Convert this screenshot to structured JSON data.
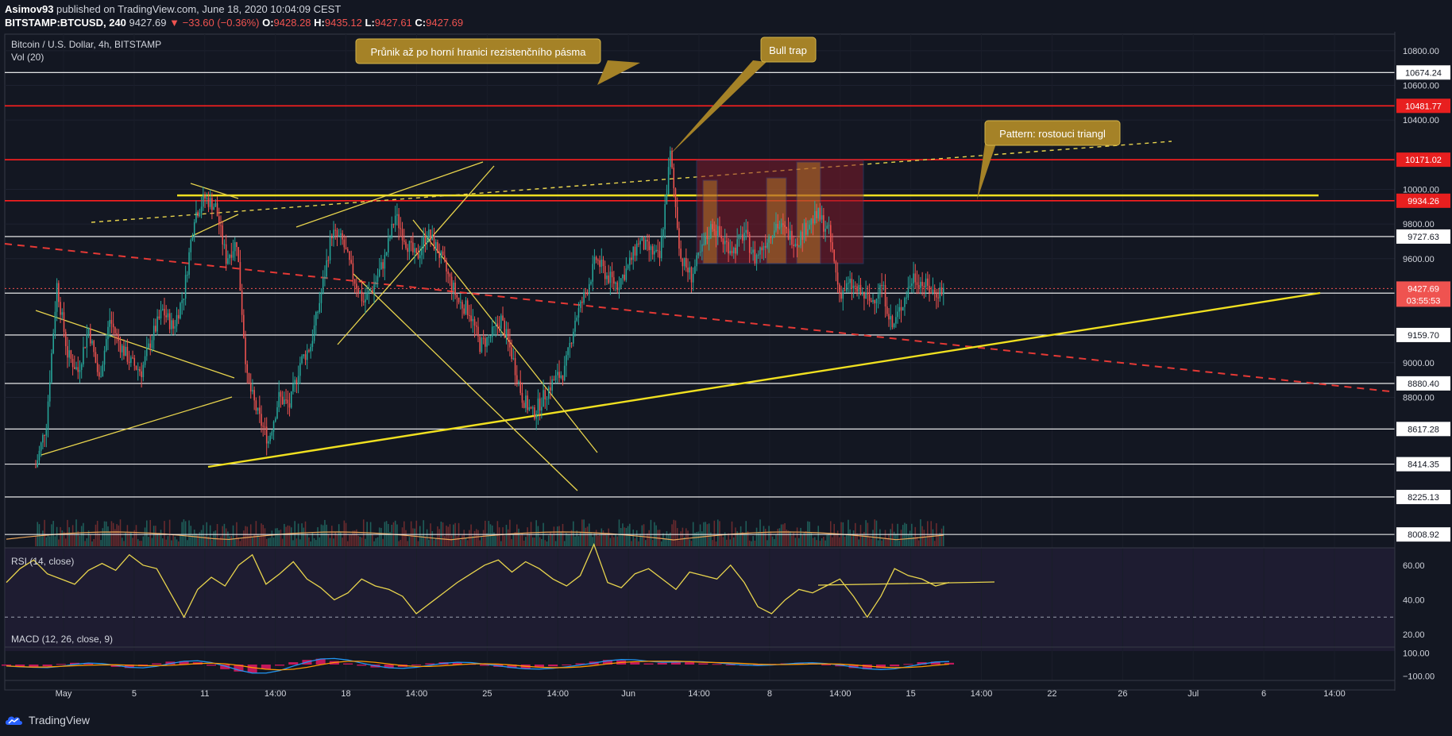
{
  "header": {
    "author": "Asimov93",
    "published": "published on TradingView.com, June 18, 2020 10:04:09 CEST",
    "symbol": "BITSTAMP:BTCUSD, 240",
    "last": "9427.69",
    "change": "▼ −33.60 (−0.36%)",
    "o_label": "O:",
    "o": "9428.28",
    "h_label": "H:",
    "h": "9435.12",
    "l_label": "L:",
    "l": "9427.61",
    "c_label": "C:",
    "c": "9427.69"
  },
  "chart_data": {
    "type": "candlestick",
    "title": "Bitcoin / U.S. Dollar, 4h, BITSTAMP",
    "volume_label": "Vol (20)",
    "y_range": [
      7950,
      10900
    ],
    "y_ticks": [
      "10800.00",
      "10600.00",
      "10400.00",
      "10000.00",
      "9800.00",
      "9600.00",
      "9000.00",
      "8800.00"
    ],
    "x_ticks": [
      "May",
      "5",
      "11",
      "14:00",
      "18",
      "14:00",
      "25",
      "14:00",
      "Jun",
      "14:00",
      "8",
      "14:00",
      "15",
      "14:00",
      "22",
      "26",
      "Jul",
      "6",
      "14:00"
    ],
    "horizontal_levels": [
      {
        "label": "10674.24",
        "value": 10674.24,
        "color": "#ffffff"
      },
      {
        "label": "10481.77",
        "value": 10481.77,
        "color": "#ff1f1f"
      },
      {
        "label": "10171.02",
        "value": 10171.02,
        "color": "#ff1f1f"
      },
      {
        "label": "9934.26",
        "value": 9934.26,
        "color": "#ff1f1f"
      },
      {
        "label": "9727.63",
        "value": 9727.63,
        "color": "#ffffff"
      },
      {
        "label": "9401.36",
        "value": 9401.36,
        "color": "#ffffff"
      },
      {
        "label": "9159.70",
        "value": 9159.7,
        "color": "#ffffff"
      },
      {
        "label": "8880.40",
        "value": 8880.4,
        "color": "#ffffff"
      },
      {
        "label": "8617.28",
        "value": 8617.28,
        "color": "#ffffff"
      },
      {
        "label": "8414.35",
        "value": 8414.35,
        "color": "#ffffff"
      },
      {
        "label": "8225.13",
        "value": 8225.13,
        "color": "#ffffff"
      },
      {
        "label": "8008.92",
        "value": 8008.92,
        "color": "#ffffff"
      }
    ],
    "yellow_level": 9965,
    "current_price": {
      "label": "9427.69",
      "countdown": "03:55:53",
      "value": 9427.69
    },
    "price_path": [
      8400,
      8650,
      9450,
      9050,
      8950,
      9200,
      8900,
      9250,
      9100,
      9000,
      8950,
      9150,
      9300,
      9200,
      9400,
      9850,
      9950,
      9900,
      9600,
      9700,
      8900,
      8700,
      8550,
      8800,
      8750,
      9000,
      9100,
      9400,
      9750,
      9700,
      9500,
      9350,
      9450,
      9600,
      9850,
      9700,
      9600,
      9750,
      9650,
      9500,
      9350,
      9300,
      9100,
      9150,
      9250,
      9050,
      8800,
      8700,
      8800,
      8900,
      8950,
      9250,
      9400,
      9600,
      9500,
      9450,
      9550,
      9700,
      9650,
      9600,
      10200,
      9600,
      9500,
      9650,
      9800,
      9700,
      9650,
      9750,
      9600,
      9700,
      9800,
      9750,
      9700,
      9800,
      9850,
      9750,
      9400,
      9450,
      9400,
      9350,
      9450,
      9200,
      9350,
      9500,
      9450,
      9400,
      9427.69
    ],
    "rsi": {
      "label": "RSI (14, close)",
      "ticks": [
        "60.00",
        "40.00",
        "20.00"
      ],
      "values": [
        50,
        58,
        63,
        55,
        52,
        49,
        57,
        61,
        57,
        66,
        60,
        58,
        44,
        30,
        46,
        53,
        48,
        60,
        66,
        49,
        55,
        62,
        52,
        47,
        40,
        44,
        52,
        48,
        46,
        42,
        32,
        38,
        44,
        50,
        55,
        60,
        63,
        56,
        62,
        58,
        52,
        48,
        54,
        72,
        50,
        47,
        55,
        58,
        52,
        46,
        56,
        54,
        52,
        60,
        50,
        36,
        32,
        40,
        46,
        44,
        48,
        52,
        42,
        30,
        42,
        58,
        54,
        52,
        48,
        50
      ]
    },
    "macd": {
      "label": "MACD (12, 26, close, 9)",
      "ticks": [
        "100.00",
        "−100.00"
      ],
      "range": [
        -130,
        130
      ],
      "hist": [
        -10,
        -20,
        -25,
        -15,
        5,
        15,
        10,
        -5,
        -20,
        -30,
        -15,
        10,
        25,
        30,
        20,
        -10,
        -40,
        -60,
        -70,
        -40,
        -10,
        20,
        40,
        50,
        30,
        10,
        -10,
        -25,
        -30,
        -20,
        -5,
        10,
        20,
        15,
        5,
        -10,
        -20,
        -30,
        -35,
        -25,
        -15,
        -5,
        10,
        25,
        40,
        35,
        20,
        10,
        15,
        25,
        20,
        10,
        5,
        -5,
        -10,
        -5,
        5,
        10,
        15,
        10,
        -5,
        -15,
        -30,
        -40,
        -30,
        -15,
        5,
        20,
        25,
        15
      ]
    },
    "annotations": [
      {
        "text": "Průnik až po horní hranici rezistenčního pásma"
      },
      {
        "text": "Bull trap"
      },
      {
        "text": "Pattern: rostouci triangl"
      }
    ]
  },
  "footer": {
    "brand": "TradingView"
  }
}
